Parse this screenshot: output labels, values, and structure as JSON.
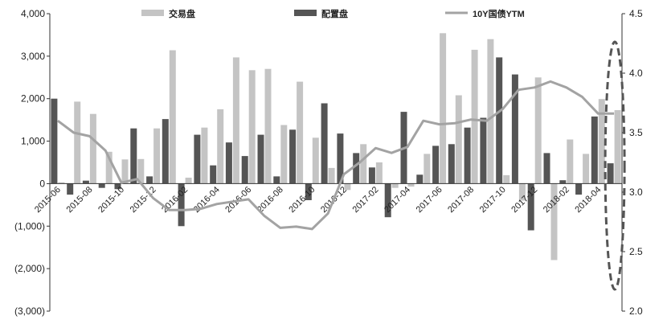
{
  "chart_data": {
    "type": "bar",
    "legend_position": "top",
    "grid": false,
    "colors": {
      "trading": "#c4c4c4",
      "allocation": "#555555",
      "yield": "#a3a3a3",
      "highlight": "#555555"
    },
    "categories": [
      "2015-06",
      "2015-07",
      "2015-08",
      "2015-09",
      "2015-10",
      "2015-11",
      "2015-12",
      "2016-01",
      "2016-02",
      "2016-03",
      "2016-04",
      "2016-05",
      "2016-06",
      "2016-07",
      "2016-08",
      "2016-09",
      "2016-10",
      "2016-11",
      "2016-12",
      "2017-01",
      "2017-02",
      "2017-03",
      "2017-04",
      "2017-05",
      "2017-06",
      "2017-07",
      "2017-08",
      "2017-09",
      "2017-10",
      "2017-11",
      "2017-12",
      "2018-01",
      "2018-02",
      "2018-03",
      "2018-04",
      "2018-05"
    ],
    "x_tick_labels": [
      "2015-06",
      "2015-08",
      "2015-10",
      "2015-12",
      "2016-02",
      "2016-04",
      "2016-06",
      "2016-08",
      "2016-10",
      "2016-12",
      "2017-02",
      "2017-04",
      "2017-06",
      "2017-08",
      "2017-10",
      "2017-12",
      "2018-02",
      "2018-04"
    ],
    "series": [
      {
        "name": "交易盘",
        "type": "bar",
        "axis": "left",
        "values": [
          30,
          1930,
          1640,
          750,
          570,
          580,
          1300,
          3140,
          140,
          1320,
          1750,
          2970,
          2670,
          2700,
          1380,
          2400,
          1080,
          370,
          -150,
          930,
          500,
          -100,
          -70,
          700,
          3540,
          2080,
          3150,
          3400,
          200,
          -400,
          2500,
          -1800,
          1040,
          700,
          1990,
          1730
        ]
      },
      {
        "name": "配置盘",
        "type": "bar",
        "axis": "left",
        "values": [
          2000,
          -260,
          70,
          -100,
          -130,
          1300,
          170,
          1520,
          -1000,
          1150,
          430,
          970,
          650,
          1150,
          170,
          1270,
          -390,
          1890,
          1180,
          720,
          380,
          -790,
          1690,
          210,
          890,
          930,
          1320,
          1550,
          2970,
          2570,
          -1100,
          720,
          80,
          -260,
          1580,
          480
        ]
      },
      {
        "name": "10Y国债YTM",
        "type": "line",
        "axis": "right",
        "values": [
          3.6,
          3.5,
          3.47,
          3.35,
          3.08,
          3.11,
          2.95,
          2.85,
          2.85,
          2.86,
          2.9,
          2.92,
          2.94,
          2.8,
          2.7,
          2.71,
          2.69,
          2.82,
          3.15,
          3.25,
          3.37,
          3.33,
          3.38,
          3.6,
          3.57,
          3.58,
          3.61,
          3.6,
          3.7,
          3.86,
          3.88,
          3.93,
          3.88,
          3.8,
          3.66,
          3.66
        ]
      }
    ],
    "y_left": {
      "min": -3000,
      "max": 4000,
      "ticks": [
        4000,
        3000,
        2000,
        1000,
        0,
        -1000,
        -2000,
        -3000
      ],
      "tick_labels": [
        "4,000",
        "3,000",
        "2,000",
        "1,000",
        "0",
        "(1,000)",
        "(2,000)",
        "(3,000)"
      ]
    },
    "y_right": {
      "min": 2.0,
      "max": 4.5,
      "ticks": [
        4.5,
        4.0,
        3.5,
        3.0,
        2.5,
        2.0
      ],
      "tick_labels": [
        "4.5",
        "4.0",
        "3.5",
        "3.0",
        "2.5",
        "2.0"
      ]
    },
    "title": "",
    "xlabel": "",
    "ylabel": "",
    "annotation": {
      "kind": "dashed-ellipse",
      "highlights_category": "2018-05"
    }
  }
}
